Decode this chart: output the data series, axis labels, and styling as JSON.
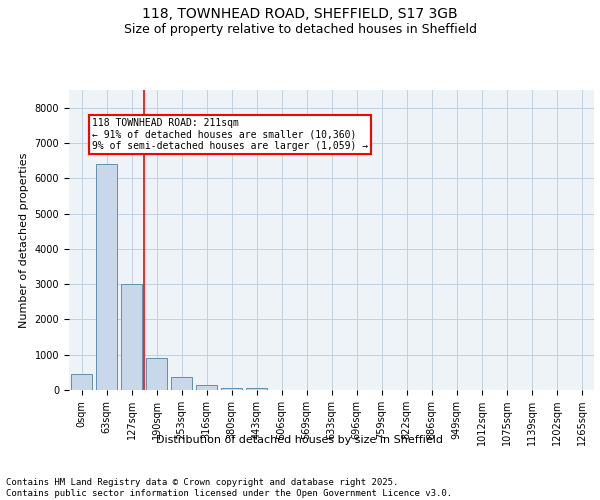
{
  "title_line1": "118, TOWNHEAD ROAD, SHEFFIELD, S17 3GB",
  "title_line2": "Size of property relative to detached houses in Sheffield",
  "xlabel": "Distribution of detached houses by size in Sheffield",
  "ylabel": "Number of detached properties",
  "bar_labels": [
    "0sqm",
    "63sqm",
    "127sqm",
    "190sqm",
    "253sqm",
    "316sqm",
    "380sqm",
    "443sqm",
    "506sqm",
    "569sqm",
    "633sqm",
    "696sqm",
    "759sqm",
    "822sqm",
    "886sqm",
    "949sqm",
    "1012sqm",
    "1075sqm",
    "1139sqm",
    "1202sqm",
    "1265sqm"
  ],
  "bar_values": [
    450,
    6400,
    3000,
    900,
    380,
    150,
    70,
    50,
    0,
    0,
    0,
    0,
    0,
    0,
    0,
    0,
    0,
    0,
    0,
    0,
    0
  ],
  "bar_color": "#c8d8e8",
  "bar_edgecolor": "#6090b0",
  "grid_color": "#c0d0e0",
  "background_color": "#eef3f8",
  "annotation_box_text": "118 TOWNHEAD ROAD: 211sqm\n← 91% of detached houses are smaller (10,360)\n9% of semi-detached houses are larger (1,059) →",
  "annotation_box_edgecolor": "red",
  "redline_x": 2.5,
  "ylim": [
    0,
    8500
  ],
  "yticks": [
    0,
    1000,
    2000,
    3000,
    4000,
    5000,
    6000,
    7000,
    8000
  ],
  "footer_text": "Contains HM Land Registry data © Crown copyright and database right 2025.\nContains public sector information licensed under the Open Government Licence v3.0.",
  "title_fontsize": 10,
  "subtitle_fontsize": 9,
  "axis_label_fontsize": 8,
  "tick_fontsize": 7,
  "annotation_fontsize": 7,
  "footer_fontsize": 6.5
}
